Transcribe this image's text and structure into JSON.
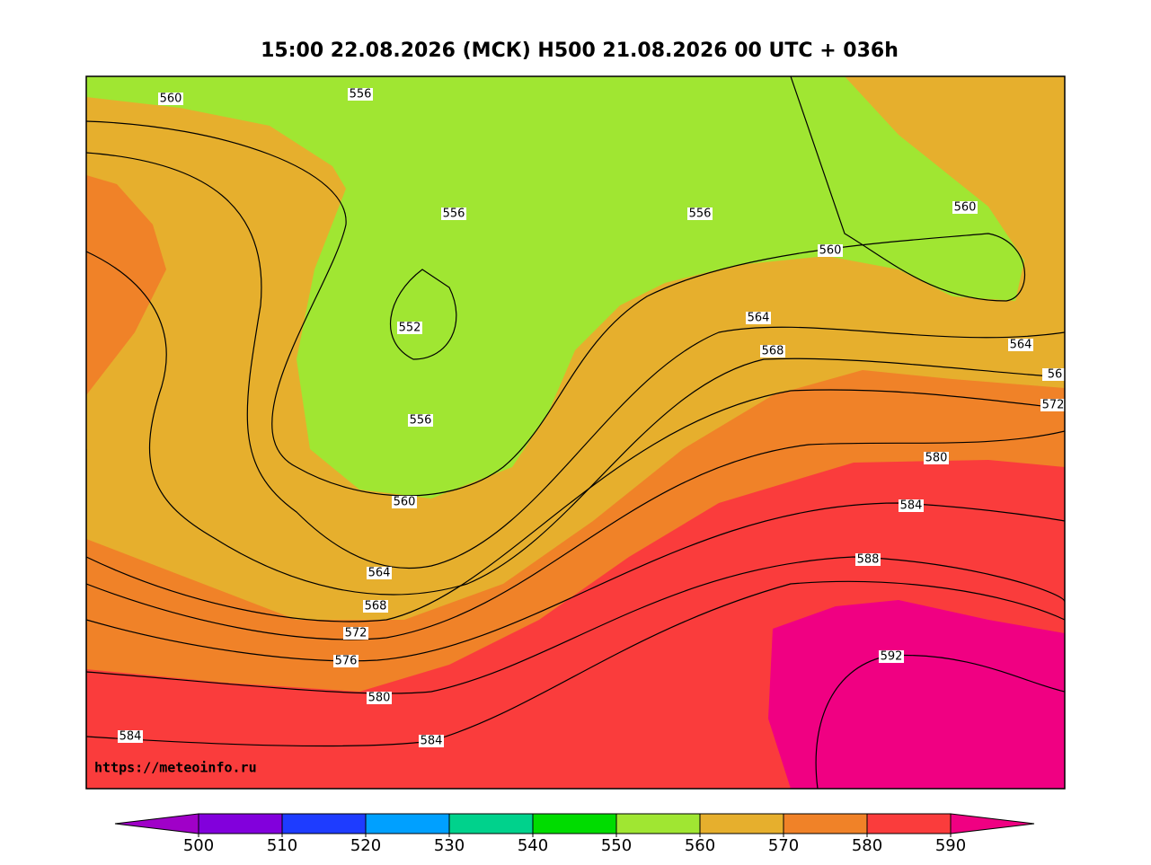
{
  "title": "15:00 22.08.2026 (МСК) H500  21.08.2026 00 UTC + 036h",
  "watermark": "https://meteoinfo.ru",
  "contour_labels": [
    560,
    556,
    556,
    556,
    560,
    560,
    552,
    564,
    568,
    564,
    56,
    572,
    580,
    584,
    588,
    592,
    556,
    560,
    564,
    568,
    572,
    576,
    580,
    584,
    584
  ],
  "colorbar": {
    "ticks": [
      500,
      510,
      520,
      530,
      540,
      550,
      560,
      570,
      580,
      590
    ],
    "under_color": "#a000c8",
    "colors": [
      "#8200dc",
      "#1e3cff",
      "#00a0ff",
      "#00d28c",
      "#00dc00",
      "#a0e632",
      "#e6af2d",
      "#f08228",
      "#fa3c3c"
    ],
    "over_color": "#f00082"
  }
}
